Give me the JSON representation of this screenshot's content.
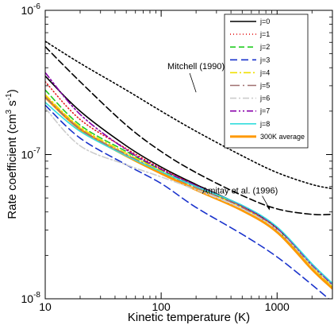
{
  "chart_data": {
    "type": "line",
    "xlabel": "Kinetic temperature (K)",
    "ylabel_main": "Rate coefficient (cm",
    "ylabel_sup1": "3",
    "ylabel_mid": " s",
    "ylabel_sup2": "-1",
    "ylabel_end": ")",
    "xscale": "log",
    "yscale": "log",
    "xlim": [
      10,
      3000
    ],
    "ylim": [
      1e-08,
      1e-06
    ],
    "x_ticks": [
      {
        "value": 10,
        "label": "10"
      },
      {
        "value": 100,
        "label": "100"
      },
      {
        "value": 1000,
        "label": "1000"
      }
    ],
    "y_ticks": [
      {
        "value": 1e-08,
        "base": "10",
        "exp": "-8"
      },
      {
        "value": 1e-07,
        "base": "10",
        "exp": "-7"
      },
      {
        "value": 1e-06,
        "base": "10",
        "exp": "-6"
      }
    ],
    "legend_position": "top-right",
    "series": [
      {
        "name": "j=0",
        "color": "#000000",
        "dash": "",
        "width": 1.6,
        "x": [
          10,
          20,
          50,
          100,
          200,
          500,
          1000,
          2000,
          3000
        ],
        "y": [
          3.5e-07,
          2e-07,
          1.15e-07,
          8.2e-08,
          6.2e-08,
          4.4e-08,
          3.1e-08,
          1.7e-08,
          1.25e-08
        ]
      },
      {
        "name": "j=1",
        "color": "#e41a1c",
        "dash": "1,3",
        "width": 1.6,
        "x": [
          10,
          20,
          50,
          100,
          200,
          500,
          1000,
          2000,
          3000
        ],
        "y": [
          3.2e-07,
          1.75e-07,
          1.1e-07,
          8e-08,
          6.1e-08,
          4.35e-08,
          3.05e-08,
          1.7e-08,
          1.25e-08
        ]
      },
      {
        "name": "j=2",
        "color": "#22cc22",
        "dash": "7,4",
        "width": 1.6,
        "x": [
          10,
          20,
          50,
          100,
          200,
          500,
          1000,
          2000,
          3000
        ],
        "y": [
          2.8e-07,
          1.6e-07,
          1.05e-07,
          7.8e-08,
          6e-08,
          4.3e-08,
          3e-08,
          1.68e-08,
          1.22e-08
        ]
      },
      {
        "name": "j=3",
        "color": "#1a33cc",
        "dash": "9,5",
        "width": 1.6,
        "x": [
          10,
          20,
          50,
          100,
          200,
          500,
          1000,
          2000,
          3000
        ],
        "y": [
          2.2e-07,
          1.3e-07,
          8.5e-08,
          6.3e-08,
          4.3e-08,
          2.8e-08,
          1.95e-08,
          1.25e-08,
          9.5e-09
        ]
      },
      {
        "name": "j=4",
        "color": "#f0e000",
        "dash": "9,3,2,3",
        "width": 1.6,
        "x": [
          10,
          20,
          50,
          100,
          200,
          500,
          1000,
          2000,
          3000
        ],
        "y": [
          2.6e-07,
          1.55e-07,
          1.02e-07,
          7.7e-08,
          5.9e-08,
          4.3e-08,
          3e-08,
          1.68e-08,
          1.22e-08
        ]
      },
      {
        "name": "j=5",
        "color": "#a07070",
        "dash": "12,4,2,4",
        "width": 1.6,
        "x": [
          10,
          20,
          50,
          100,
          200,
          500,
          1000,
          2000,
          3000
        ],
        "y": [
          2.5e-07,
          1.5e-07,
          1e-07,
          7.6e-08,
          5.9e-08,
          4.3e-08,
          3e-08,
          1.7e-08,
          1.24e-08
        ]
      },
      {
        "name": "j=6",
        "color": "#cccccc",
        "dash": "8,3,2,3",
        "width": 1.6,
        "x": [
          10,
          20,
          50,
          100,
          200,
          500,
          1000,
          2000,
          3000
        ],
        "y": [
          2.1e-07,
          1.15e-07,
          8.5e-08,
          7e-08,
          5.7e-08,
          4.2e-08,
          3e-08,
          1.7e-08,
          1.24e-08
        ]
      },
      {
        "name": "j=7",
        "color": "#8800aa",
        "dash": "8,3,2,3,2,3",
        "width": 1.6,
        "x": [
          10,
          20,
          50,
          100,
          200,
          500,
          1000,
          2000,
          3000
        ],
        "y": [
          3.7e-07,
          1.9e-07,
          1.08e-07,
          7.9e-08,
          6.1e-08,
          4.4e-08,
          3.1e-08,
          1.72e-08,
          1.26e-08
        ]
      },
      {
        "name": "j=8",
        "color": "#33dddd",
        "dash": "",
        "width": 1.6,
        "x": [
          10,
          20,
          50,
          100,
          200,
          500,
          1000,
          2000,
          3000
        ],
        "y": [
          2.3e-07,
          1.45e-07,
          9.8e-08,
          7.6e-08,
          6e-08,
          4.45e-08,
          3.15e-08,
          1.75e-08,
          1.28e-08
        ]
      },
      {
        "name": "300K average",
        "color": "#ff9900",
        "dash": "",
        "width": 3,
        "x": [
          10,
          20,
          50,
          100,
          200,
          500,
          1000,
          2000,
          3000
        ],
        "y": [
          2.5e-07,
          1.5e-07,
          9.8e-08,
          7.4e-08,
          5.7e-08,
          4.1e-08,
          2.9e-08,
          1.6e-08,
          1.18e-08
        ]
      },
      {
        "name": "",
        "color": "#000000",
        "dash": "2,3",
        "width": 1.6,
        "x": [
          10,
          20,
          50,
          100,
          200,
          500,
          1000,
          2000,
          3000
        ],
        "y": [
          6.1e-07,
          4.3e-07,
          2.8e-07,
          2e-07,
          1.45e-07,
          9.8e-08,
          7.5e-08,
          6.2e-08,
          5.8e-08
        ]
      },
      {
        "name": "",
        "color": "#000000",
        "dash": "8,4",
        "width": 1.6,
        "x": [
          10,
          20,
          50,
          100,
          200,
          500,
          1000,
          2000,
          3000
        ],
        "y": [
          5.6e-07,
          3.2e-07,
          1.6e-07,
          1.05e-07,
          7.5e-08,
          5.2e-08,
          4.2e-08,
          3.85e-08,
          3.85e-08
        ]
      }
    ],
    "annotations": [
      {
        "text": "Mitchell (1990)",
        "x": 200,
        "y": 2.6e-07
      },
      {
        "text": "Amitay et al. (1996)",
        "x": 900,
        "y": 4.55e-08
      }
    ]
  }
}
